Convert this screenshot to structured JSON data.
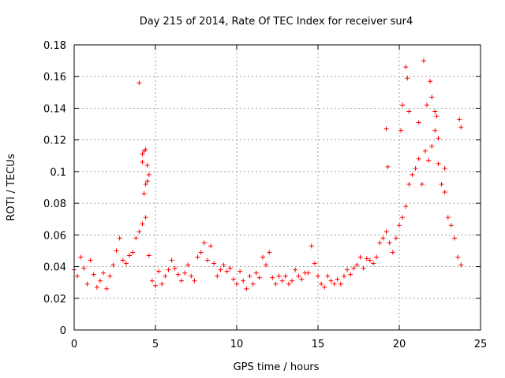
{
  "chart_data": {
    "type": "scatter",
    "title": "Day 215 of 2014, Rate Of TEC Index for receiver sur4",
    "xlabel": "GPS time / hours",
    "ylabel": "ROTI / TECUs",
    "xlim": [
      0,
      25
    ],
    "ylim": [
      0,
      0.18
    ],
    "x_ticks": [
      0,
      5,
      10,
      15,
      20,
      25
    ],
    "y_ticks": [
      0,
      0.02,
      0.04,
      0.06,
      0.08,
      0.1,
      0.12,
      0.14,
      0.16,
      0.18
    ],
    "x_tick_labels": [
      "0",
      "5",
      "10",
      "15",
      "20",
      "25"
    ],
    "y_tick_labels": [
      "0",
      "0.02",
      "0.04",
      "0.06",
      "0.08",
      "0.1",
      "0.12",
      "0.14",
      "0.16",
      "0.18"
    ],
    "grid": true,
    "marker": "+",
    "marker_color": "#ff0000",
    "series": [
      {
        "x": [
          0.0,
          0.2,
          0.4,
          0.6,
          0.8,
          1.0,
          1.2,
          1.4,
          1.6,
          1.8,
          2.0,
          2.2,
          2.4,
          2.6,
          2.8,
          3.0,
          3.2,
          3.4,
          3.6,
          3.8,
          4.0,
          4.2,
          4.4,
          4.6,
          4.8,
          5.0,
          5.2,
          5.4,
          5.6,
          5.8,
          6.0,
          6.2,
          6.4,
          6.6,
          6.8,
          7.0,
          7.2,
          7.4,
          7.6,
          7.8,
          8.0,
          8.2,
          8.4,
          8.6,
          8.8,
          9.0,
          9.2,
          9.4,
          9.6,
          9.8,
          10.0,
          10.2,
          10.4,
          10.6,
          10.8,
          11.0,
          11.2,
          11.4,
          11.6,
          11.8,
          12.0,
          12.2,
          12.4,
          12.6,
          12.8,
          13.0,
          13.2,
          13.4,
          13.6,
          13.8,
          14.0,
          14.2,
          14.4,
          14.6,
          14.8,
          15.0,
          15.2,
          15.4,
          15.6,
          15.8,
          16.0,
          16.2,
          16.4,
          16.6,
          16.8,
          17.0,
          17.2,
          17.4,
          17.6,
          17.8,
          18.0,
          18.2,
          18.4,
          18.6,
          18.8,
          19.0,
          19.2,
          19.4,
          19.6,
          19.8,
          20.0,
          20.2,
          20.4,
          20.6,
          20.8,
          21.0,
          21.2,
          21.4,
          21.6,
          21.8,
          22.0,
          22.2,
          22.4,
          22.6,
          22.8,
          23.0,
          23.2,
          23.4,
          23.6,
          23.8
        ],
        "y": [
          0.038,
          0.034,
          0.046,
          0.039,
          0.029,
          0.044,
          0.035,
          0.027,
          0.031,
          0.036,
          0.026,
          0.034,
          0.041,
          0.05,
          0.058,
          0.044,
          0.042,
          0.047,
          0.049,
          0.058,
          0.062,
          0.067,
          0.071,
          0.047,
          0.031,
          0.028,
          0.037,
          0.029,
          0.034,
          0.038,
          0.044,
          0.039,
          0.035,
          0.031,
          0.036,
          0.041,
          0.034,
          0.031,
          0.046,
          0.049,
          0.055,
          0.044,
          0.053,
          0.042,
          0.034,
          0.038,
          0.041,
          0.037,
          0.039,
          0.032,
          0.029,
          0.037,
          0.031,
          0.026,
          0.034,
          0.029,
          0.036,
          0.033,
          0.046,
          0.041,
          0.049,
          0.033,
          0.029,
          0.034,
          0.031,
          0.034,
          0.029,
          0.031,
          0.038,
          0.034,
          0.032,
          0.036,
          0.036,
          0.053,
          0.042,
          0.034,
          0.029,
          0.027,
          0.034,
          0.031,
          0.029,
          0.032,
          0.029,
          0.034,
          0.038,
          0.035,
          0.039,
          0.041,
          0.046,
          0.039,
          0.045,
          0.044,
          0.042,
          0.046,
          0.055,
          0.058,
          0.062,
          0.055,
          0.049,
          0.058,
          0.066,
          0.071,
          0.078,
          0.092,
          0.098,
          0.102,
          0.108,
          0.092,
          0.113,
          0.107,
          0.116,
          0.126,
          0.105,
          0.092,
          0.087,
          0.071,
          0.066,
          0.058,
          0.046,
          0.041
        ]
      },
      {
        "x": [
          4.0,
          4.2,
          4.3,
          4.4,
          4.5,
          4.6,
          4.4,
          4.3,
          4.5,
          4.2,
          19.2,
          19.3,
          20.1,
          20.2,
          20.4,
          20.5,
          20.6,
          21.2,
          21.5,
          21.7,
          21.9,
          22.0,
          22.2,
          22.3,
          22.4,
          22.8,
          23.7,
          23.8
        ],
        "y": [
          0.156,
          0.111,
          0.113,
          0.114,
          0.104,
          0.098,
          0.092,
          0.086,
          0.094,
          0.106,
          0.127,
          0.103,
          0.126,
          0.142,
          0.166,
          0.159,
          0.138,
          0.131,
          0.17,
          0.142,
          0.157,
          0.147,
          0.138,
          0.135,
          0.121,
          0.102,
          0.133,
          0.128
        ]
      }
    ]
  }
}
